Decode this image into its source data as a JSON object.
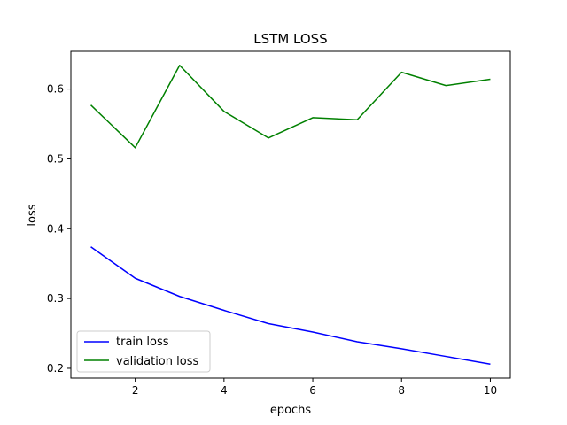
{
  "chart_data": {
    "type": "line",
    "title": "LSTM LOSS",
    "xlabel": "epochs",
    "ylabel": "loss",
    "x": [
      1,
      2,
      3,
      4,
      5,
      6,
      7,
      8,
      9,
      10
    ],
    "xlim": [
      0.55,
      10.45
    ],
    "ylim": [
      0.186,
      0.654
    ],
    "xticks": [
      2,
      4,
      6,
      8,
      10
    ],
    "yticks": [
      0.2,
      0.3,
      0.4,
      0.5,
      0.6
    ],
    "grid": false,
    "legend_position": "lower-left",
    "series": [
      {
        "name": "train loss",
        "color": "#0000ff",
        "values": [
          0.374,
          0.329,
          0.303,
          0.283,
          0.264,
          0.252,
          0.238,
          0.228,
          0.217,
          0.206
        ]
      },
      {
        "name": "validation loss",
        "color": "#008000",
        "values": [
          0.577,
          0.516,
          0.634,
          0.568,
          0.53,
          0.559,
          0.556,
          0.624,
          0.605,
          0.614
        ]
      }
    ]
  }
}
